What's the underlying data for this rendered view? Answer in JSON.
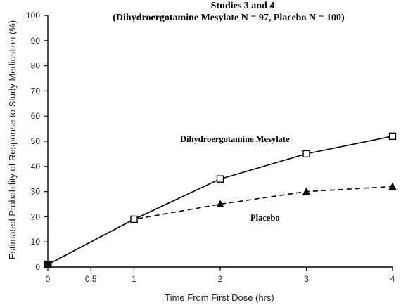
{
  "chart_data": {
    "type": "line",
    "title": "Studies 3 and 4",
    "subtitle": "(Dihydroergotamine Mesylate N = 97, Placebo N = 100)",
    "xlabel": "Time From First Dose (hrs)",
    "ylabel": "Estimated Probability of Response to Study Medication (%)",
    "xlim": [
      0,
      4
    ],
    "ylim": [
      0,
      100
    ],
    "xticks": [
      "0",
      "0.5",
      "1",
      "2",
      "3",
      "4"
    ],
    "xtick_values": [
      0,
      0.5,
      1,
      2,
      3,
      4
    ],
    "yticks": [
      "0",
      "10",
      "20",
      "30",
      "40",
      "50",
      "60",
      "70",
      "80",
      "90",
      "100"
    ],
    "ytick_values": [
      0,
      10,
      20,
      30,
      40,
      50,
      60,
      70,
      80,
      90,
      100
    ],
    "grid": false,
    "legend": "none",
    "series": [
      {
        "name": "Dihydroergotamine Mesylate",
        "marker": "open-square",
        "linestyle": "solid",
        "x": [
          0,
          1,
          2,
          3,
          4
        ],
        "values": [
          1,
          19,
          35,
          45,
          52
        ]
      },
      {
        "name": "Placebo",
        "marker": "filled-triangle",
        "linestyle": "dashed",
        "x": [
          0,
          1,
          2,
          3,
          4
        ],
        "values": [
          1,
          19,
          25,
          30,
          32
        ]
      }
    ]
  }
}
